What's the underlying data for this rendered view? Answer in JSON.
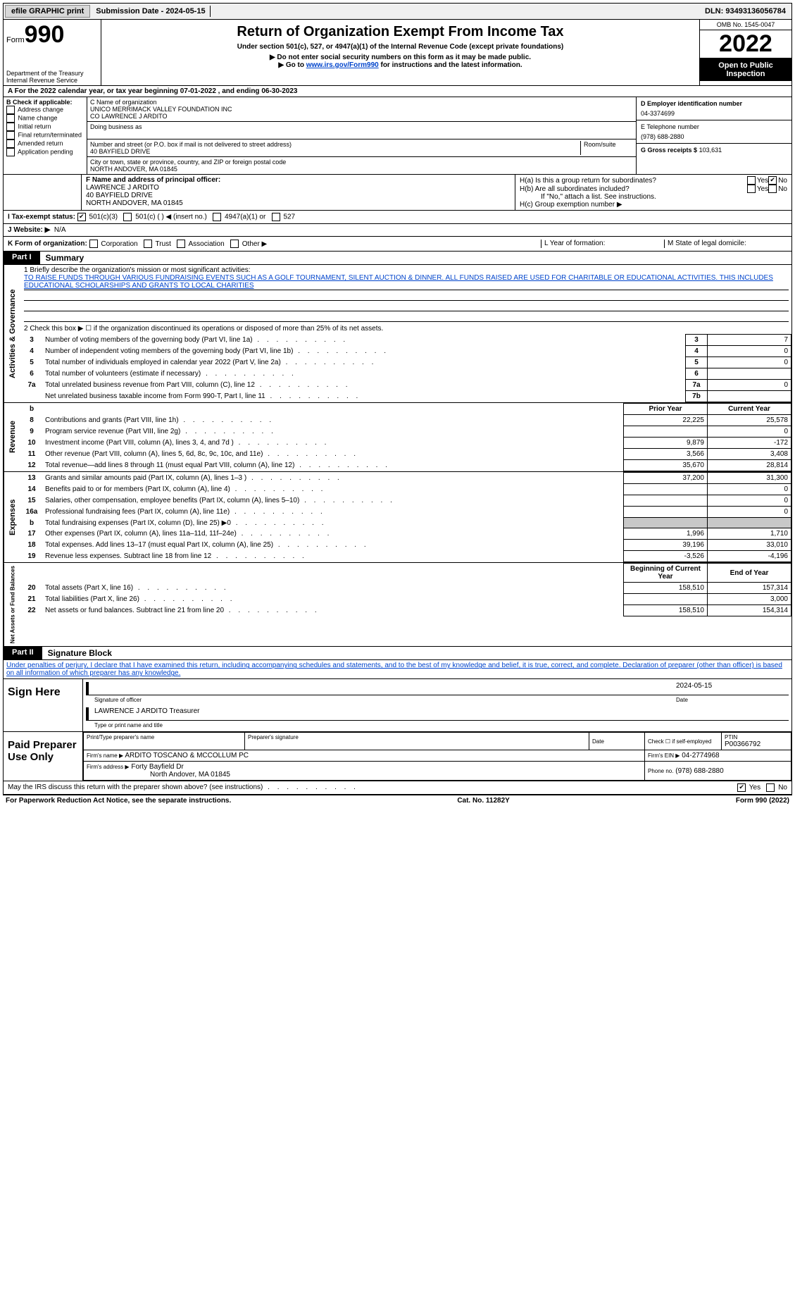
{
  "topbar": {
    "efile": "efile GRAPHIC print",
    "submission_label": "Submission Date - 2024-05-15",
    "dln": "DLN: 93493136056784"
  },
  "header": {
    "form_label": "Form",
    "form_number": "990",
    "dept": "Department of the Treasury",
    "irs": "Internal Revenue Service",
    "title": "Return of Organization Exempt From Income Tax",
    "subtitle": "Under section 501(c), 527, or 4947(a)(1) of the Internal Revenue Code (except private foundations)",
    "note1": "▶ Do not enter social security numbers on this form as it may be made public.",
    "note2_prefix": "▶ Go to ",
    "note2_link": "www.irs.gov/Form990",
    "note2_suffix": " for instructions and the latest information.",
    "omb": "OMB No. 1545-0047",
    "year": "2022",
    "open": "Open to Public Inspection"
  },
  "period": {
    "text": "A For the 2022 calendar year, or tax year beginning 07-01-2022    , and ending 06-30-2023"
  },
  "section_b": {
    "label": "B Check if applicable:",
    "items": [
      "Address change",
      "Name change",
      "Initial return",
      "Final return/terminated",
      "Amended return",
      "Application pending"
    ]
  },
  "section_c": {
    "name_label": "C Name of organization",
    "name": "UNICO MERRIMACK VALLEY FOUNDATION INC",
    "co": "CO LAWRENCE J ARDITO",
    "dba_label": "Doing business as",
    "street_label": "Number and street (or P.O. box if mail is not delivered to street address)",
    "street": "40 BAYFIELD DRIVE",
    "room_label": "Room/suite",
    "city_label": "City or town, state or province, country, and ZIP or foreign postal code",
    "city": "NORTH ANDOVER, MA  01845"
  },
  "section_d": {
    "ein_label": "D Employer identification number",
    "ein": "04-3374699",
    "phone_label": "E Telephone number",
    "phone": "(978) 688-2880",
    "gross_label": "G Gross receipts $",
    "gross": "103,631"
  },
  "section_f": {
    "label": "F  Name and address of principal officer:",
    "name": "LAWRENCE J ARDITO",
    "street": "40 BAYFIELD DRIVE",
    "city": "NORTH ANDOVER, MA  01845"
  },
  "section_h": {
    "ha": "H(a)  Is this a group return for subordinates?",
    "hb": "H(b)  Are all subordinates included?",
    "hb_note": "If \"No,\" attach a list. See instructions.",
    "hc": "H(c)  Group exemption number ▶"
  },
  "tax_status": {
    "label": "I  Tax-exempt status:",
    "opt1": "501(c)(3)",
    "opt2": "501(c) (   ) ◀ (insert no.)",
    "opt3": "4947(a)(1) or",
    "opt4": "527"
  },
  "website": {
    "label": "J  Website: ▶",
    "value": "N/A"
  },
  "korg": {
    "label": "K Form of organization:",
    "opts": [
      "Corporation",
      "Trust",
      "Association",
      "Other ▶"
    ],
    "l": "L Year of formation:",
    "m": "M State of legal domicile:"
  },
  "parts": {
    "p1": "Part I",
    "p1_title": "Summary",
    "p2": "Part II",
    "p2_title": "Signature Block"
  },
  "summary": {
    "line1_label": "1   Briefly describe the organization's mission or most significant activities:",
    "mission": "TO RAISE FUNDS THROUGH VARIOUS FUNDRAISING EVENTS SUCH AS A GOLF TOURNAMENT, SILENT AUCTION & DINNER. ALL FUNDS RAISED ARE USED FOR CHARITABLE OR EDUCATIONAL ACTIVITIES. THIS INCLUDES EDUCATIONAL SCHOLARSHIPS AND GRANTS TO LOCAL CHARITIES",
    "line2": "2   Check this box ▶ ☐  if the organization discontinued its operations or disposed of more than 25% of its net assets.",
    "prior_year": "Prior Year",
    "current_year": "Current Year",
    "begin_year": "Beginning of Current Year",
    "end_year": "End of Year",
    "sides": {
      "ag": "Activities & Governance",
      "rev": "Revenue",
      "exp": "Expenses",
      "net": "Net Assets or Fund Balances"
    },
    "rows": [
      {
        "n": "3",
        "t": "Number of voting members of the governing body (Part VI, line 1a)",
        "box": "3",
        "v2": "7"
      },
      {
        "n": "4",
        "t": "Number of independent voting members of the governing body (Part VI, line 1b)",
        "box": "4",
        "v2": "0"
      },
      {
        "n": "5",
        "t": "Total number of individuals employed in calendar year 2022 (Part V, line 2a)",
        "box": "5",
        "v2": "0"
      },
      {
        "n": "6",
        "t": "Total number of volunteers (estimate if necessary)",
        "box": "6",
        "v2": ""
      },
      {
        "n": "7a",
        "t": "Total unrelated business revenue from Part VIII, column (C), line 12",
        "box": "7a",
        "v2": "0"
      },
      {
        "n": "",
        "t": "Net unrelated business taxable income from Form 990-T, Part I, line 11",
        "box": "7b",
        "v2": ""
      }
    ],
    "rev_rows": [
      {
        "n": "8",
        "t": "Contributions and grants (Part VIII, line 1h)",
        "v1": "22,225",
        "v2": "25,578"
      },
      {
        "n": "9",
        "t": "Program service revenue (Part VIII, line 2g)",
        "v1": "",
        "v2": "0"
      },
      {
        "n": "10",
        "t": "Investment income (Part VIII, column (A), lines 3, 4, and 7d )",
        "v1": "9,879",
        "v2": "-172"
      },
      {
        "n": "11",
        "t": "Other revenue (Part VIII, column (A), lines 5, 6d, 8c, 9c, 10c, and 11e)",
        "v1": "3,566",
        "v2": "3,408"
      },
      {
        "n": "12",
        "t": "Total revenue—add lines 8 through 11 (must equal Part VIII, column (A), line 12)",
        "v1": "35,670",
        "v2": "28,814"
      }
    ],
    "exp_rows": [
      {
        "n": "13",
        "t": "Grants and similar amounts paid (Part IX, column (A), lines 1–3 )",
        "v1": "37,200",
        "v2": "31,300"
      },
      {
        "n": "14",
        "t": "Benefits paid to or for members (Part IX, column (A), line 4)",
        "v1": "",
        "v2": "0"
      },
      {
        "n": "15",
        "t": "Salaries, other compensation, employee benefits (Part IX, column (A), lines 5–10)",
        "v1": "",
        "v2": "0"
      },
      {
        "n": "16a",
        "t": "Professional fundraising fees (Part IX, column (A), line 11e)",
        "v1": "",
        "v2": "0"
      },
      {
        "n": "b",
        "t": "Total fundraising expenses (Part IX, column (D), line 25) ▶0",
        "v1": "grey",
        "v2": "grey"
      },
      {
        "n": "17",
        "t": "Other expenses (Part IX, column (A), lines 11a–11d, 11f–24e)",
        "v1": "1,996",
        "v2": "1,710"
      },
      {
        "n": "18",
        "t": "Total expenses. Add lines 13–17 (must equal Part IX, column (A), line 25)",
        "v1": "39,196",
        "v2": "33,010"
      },
      {
        "n": "19",
        "t": "Revenue less expenses. Subtract line 18 from line 12",
        "v1": "-3,526",
        "v2": "-4,196"
      }
    ],
    "net_rows": [
      {
        "n": "20",
        "t": "Total assets (Part X, line 16)",
        "v1": "158,510",
        "v2": "157,314"
      },
      {
        "n": "21",
        "t": "Total liabilities (Part X, line 26)",
        "v1": "",
        "v2": "3,000"
      },
      {
        "n": "22",
        "t": "Net assets or fund balances. Subtract line 21 from line 20",
        "v1": "158,510",
        "v2": "154,314"
      }
    ]
  },
  "signature": {
    "declaration": "Under penalties of perjury, I declare that I have examined this return, including accompanying schedules and statements, and to the best of my knowledge and belief, it is true, correct, and complete. Declaration of preparer (other than officer) is based on all information of which preparer has any knowledge.",
    "sign_here": "Sign Here",
    "sig_officer": "Signature of officer",
    "date": "Date",
    "sig_date": "2024-05-15",
    "name_title": "LAWRENCE J ARDITO  Treasurer",
    "type_name": "Type or print name and title",
    "paid": "Paid Preparer Use Only",
    "pt_name_label": "Print/Type preparer's name",
    "prep_sig_label": "Preparer's signature",
    "check_self": "Check ☐ if self-employed",
    "ptin_label": "PTIN",
    "ptin": "P00366792",
    "firm_name_label": "Firm's name   ▶",
    "firm_name": "ARDITO TOSCANO & MCCOLLUM PC",
    "firm_ein_label": "Firm's EIN ▶",
    "firm_ein": "04-2774968",
    "firm_addr_label": "Firm's address ▶",
    "firm_addr1": "Forty Bayfield Dr",
    "firm_addr2": "North Andover, MA  01845",
    "phone_label": "Phone no.",
    "phone": "(978) 688-2880",
    "discuss": "May the IRS discuss this return with the preparer shown above? (see instructions)",
    "yes": "Yes",
    "no": "No"
  },
  "footer": {
    "left": "For Paperwork Reduction Act Notice, see the separate instructions.",
    "mid": "Cat. No. 11282Y",
    "right": "Form 990 (2022)"
  }
}
